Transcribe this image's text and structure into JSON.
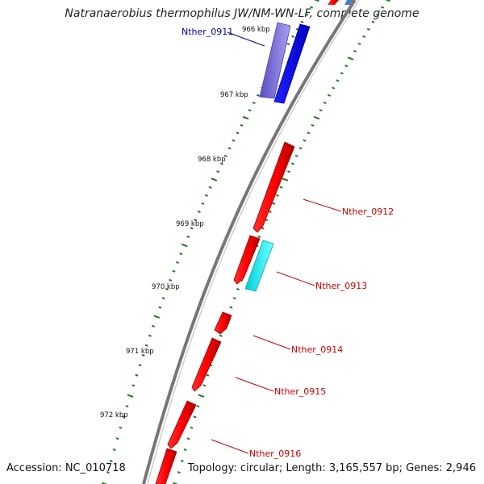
{
  "title": "Natranaerobius thermophilus JW/NM-WN-LF, complete genome",
  "accession": "Accession: NC_010718",
  "topology": "Topology: circular; Length: 3,165,557 bp; Genes: 2,946",
  "colors": {
    "backbone": "#777777",
    "tick": "#1e7a1e",
    "forward_gene": "#ff0000",
    "blue_gene": "#0000ee",
    "purple_gene": "#7b6fd0",
    "cyan_gene": "#00e8ee",
    "label_red": "#cc0000",
    "label_blue": "#000099"
  },
  "kbp_labels": [
    "966 kbp",
    "967 kbp",
    "968 kbp",
    "969 kbp",
    "970 kbp",
    "971 kbp",
    "972 kbp"
  ],
  "genes": [
    {
      "name": "Nther_0911",
      "color": "blue"
    },
    {
      "name": "Nther_0912",
      "color": "red"
    },
    {
      "name": "Nther_0913",
      "color": "red"
    },
    {
      "name": "Nther_0914",
      "color": "red"
    },
    {
      "name": "Nther_0915",
      "color": "red"
    },
    {
      "name": "Nther_0916",
      "color": "red"
    }
  ]
}
